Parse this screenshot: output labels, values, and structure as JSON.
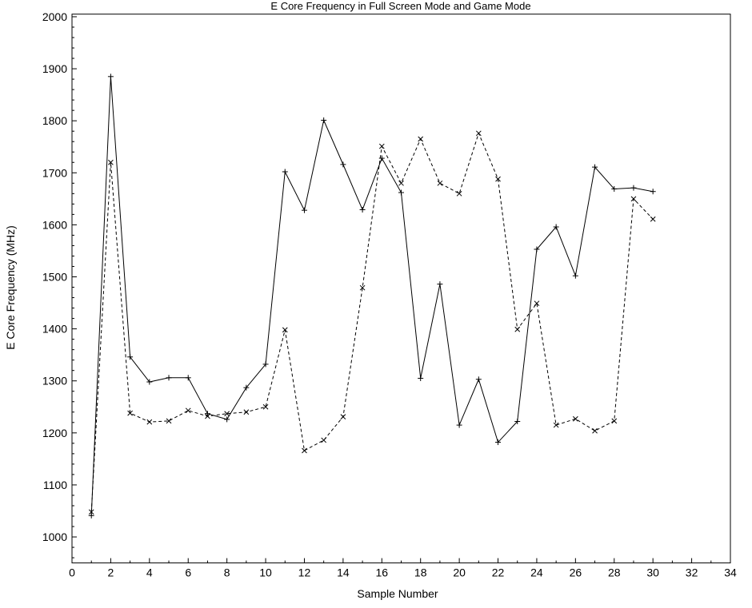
{
  "chart_data": {
    "type": "line",
    "title": "E Core Frequency in Full Screen Mode and Game Mode",
    "xlabel": "Sample Number",
    "ylabel": "E Core Frequency (MHz)",
    "xlim": [
      0,
      34
    ],
    "ylim": [
      950,
      2005
    ],
    "xticks": [
      0,
      2,
      4,
      6,
      8,
      10,
      12,
      14,
      16,
      18,
      20,
      22,
      24,
      26,
      28,
      30,
      32,
      34
    ],
    "yticks": [
      1000,
      1100,
      1200,
      1300,
      1400,
      1500,
      1600,
      1700,
      1800,
      1900,
      2000
    ],
    "grid": false,
    "x": [
      1,
      2,
      3,
      4,
      5,
      6,
      7,
      8,
      9,
      10,
      11,
      12,
      13,
      14,
      15,
      16,
      17,
      18,
      19,
      20,
      21,
      22,
      23,
      24,
      25,
      26,
      27,
      28,
      29,
      30
    ],
    "series": [
      {
        "style": "solid",
        "marker": "plus",
        "color": "#000000",
        "values": [
          1041,
          1885,
          1346,
          1298,
          1306,
          1306,
          1237,
          1226,
          1287,
          1332,
          1702,
          1628,
          1801,
          1716,
          1629,
          1728,
          1662,
          1305,
          1486,
          1215,
          1303,
          1182,
          1222,
          1553,
          1596,
          1502,
          1711,
          1669,
          1671,
          1664
        ]
      },
      {
        "style": "dashed",
        "marker": "x",
        "color": "#000000",
        "values": [
          1048,
          1720,
          1238,
          1221,
          1223,
          1243,
          1232,
          1237,
          1240,
          1250,
          1398,
          1166,
          1186,
          1231,
          1479,
          1751,
          1680,
          1765,
          1680,
          1660,
          1776,
          1688,
          1399,
          1449,
          1215,
          1227,
          1204,
          1223,
          1650,
          1611
        ]
      }
    ]
  }
}
